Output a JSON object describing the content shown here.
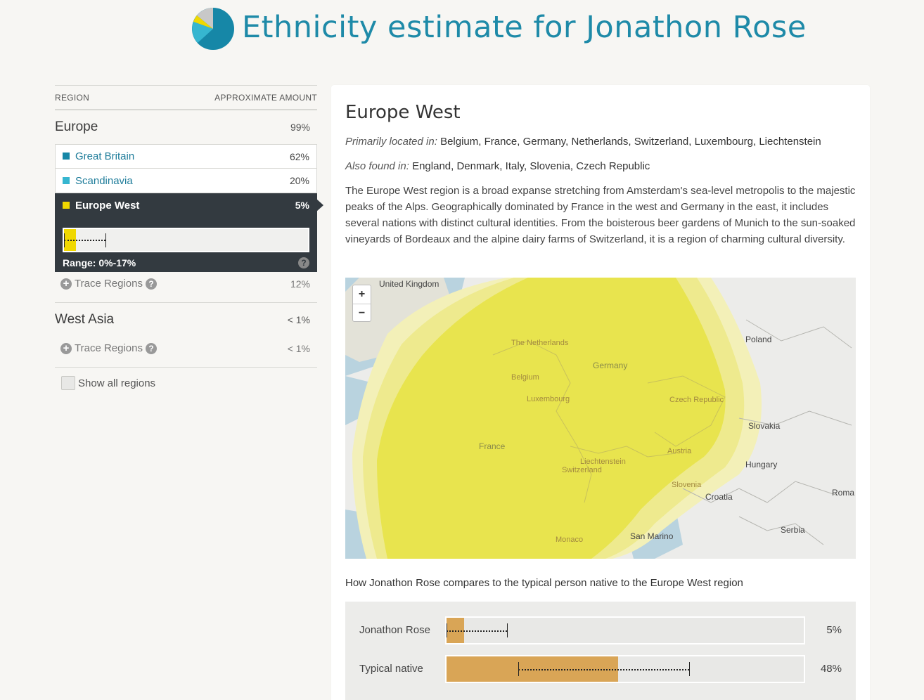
{
  "header": {
    "title": "Ethnicity estimate for Jonathon Rose",
    "pie_colors": [
      "#1687a7",
      "#36b6d0",
      "#f0d800",
      "#c8c8c8"
    ]
  },
  "table": {
    "col_region": "REGION",
    "col_amount": "APPROXIMATE AMOUNT"
  },
  "groups": [
    {
      "name": "Europe",
      "pct": "99%",
      "items": [
        {
          "label": "Great Britain",
          "pct": "62%",
          "color": "#1687a7"
        },
        {
          "label": "Scandinavia",
          "pct": "20%",
          "color": "#36b6d0"
        },
        {
          "label": "Europe West",
          "pct": "5%",
          "color": "#f0d800"
        }
      ],
      "range": {
        "label": "Range: 0%-17%",
        "value": 5,
        "min": 0,
        "max": 17
      },
      "trace": {
        "label": "Trace Regions",
        "pct": "12%"
      }
    },
    {
      "name": "West Asia",
      "pct": "< 1%",
      "trace": {
        "label": "Trace Regions",
        "pct": "< 1%"
      }
    }
  ],
  "show_all": "Show all regions",
  "detail": {
    "title": "Europe West",
    "primary_label": "Primarily located in:",
    "primary_value": "Belgium, France, Germany, Netherlands, Switzerland, Luxembourg, Liechtenstein",
    "also_label": "Also found in:",
    "also_value": "England, Denmark, Italy, Slovenia, Czech Republic",
    "description": "The Europe West region is a broad expanse stretching from Amsterdam's sea-level metropolis to the majestic peaks of the Alps. Geographically dominated by France in the west and Germany in the east, it includes several nations with distinct cultural identities. From the boisterous beer gardens of Munich to the sun-soaked vineyards of Bordeaux and the alpine dairy farms of Switzerland, it is a region of charming cultural diversity."
  },
  "map": {
    "zoom_in": "+",
    "zoom_out": "−",
    "labels": {
      "uk": "United Kingdom",
      "netherlands": "The Netherlands",
      "germany": "Germany",
      "poland": "Poland",
      "belgium": "Belgium",
      "luxembourg": "Luxembourg",
      "czech": "Czech Republic",
      "slovakia": "Slovakia",
      "france": "France",
      "austria": "Austria",
      "liechtenstein": "Liechtenstein",
      "switzerland": "Switzerland",
      "hungary": "Hungary",
      "slovenia": "Slovenia",
      "croatia": "Croatia",
      "romania": "Roma",
      "serbia": "Serbia",
      "san_marino": "San Marino",
      "monaco": "Monaco"
    }
  },
  "compare": {
    "title": "How Jonathon Rose compares to the typical person native to the Europe West region",
    "rows": [
      {
        "name": "Jonathon Rose",
        "pct": "5%",
        "value": 5,
        "range_min": 0,
        "range_max": 17
      },
      {
        "name": "Typical native",
        "pct": "48%",
        "value": 48,
        "range_min": 20,
        "range_max": 68
      }
    ]
  }
}
